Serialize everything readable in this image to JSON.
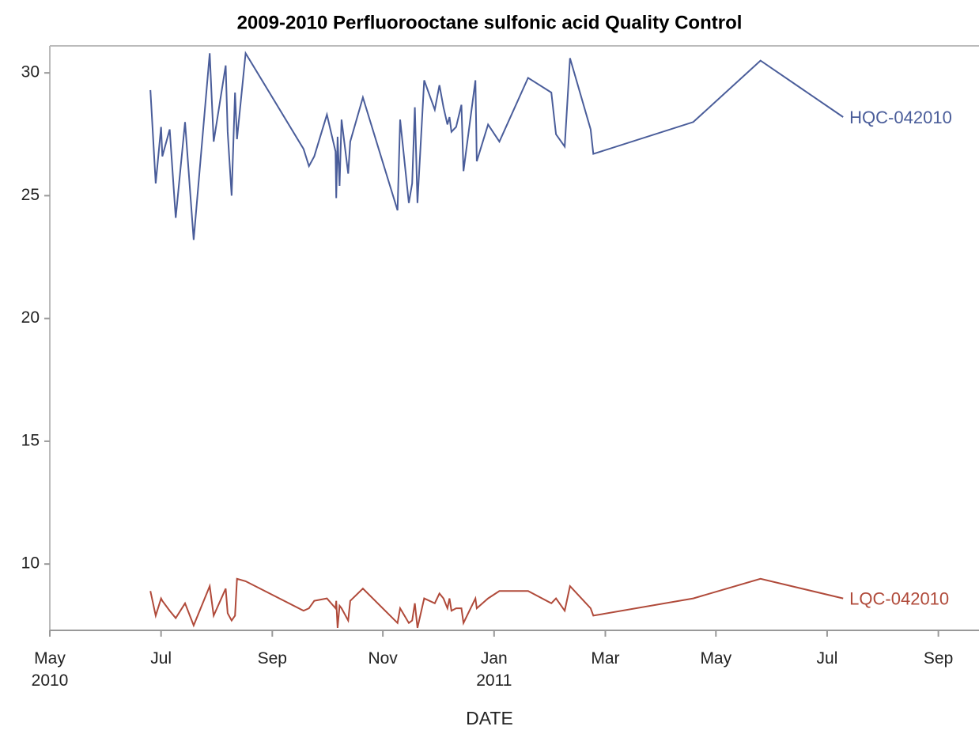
{
  "chart_data": {
    "type": "line",
    "title": "2009-2010 Perfluorooctane sulfonic acid Quality Control",
    "x_label": "DATE",
    "x": [
      2010.484,
      2010.492,
      2010.5,
      2010.502,
      2010.513,
      2010.522,
      2010.536,
      2010.549,
      2010.573,
      2010.579,
      2010.597,
      2010.6,
      2010.606,
      2010.611,
      2010.614,
      2010.627,
      2010.714,
      2010.722,
      2010.73,
      2010.749,
      2010.762,
      2010.763,
      2010.765,
      2010.768,
      2010.771,
      2010.781,
      2010.784,
      2010.803,
      2010.855,
      2010.859,
      2010.872,
      2010.877,
      2010.881,
      2010.885,
      2010.895,
      2010.911,
      2010.918,
      2010.924,
      2010.93,
      2010.933,
      2010.936,
      2010.943,
      2010.951,
      2010.954,
      2010.972,
      2010.974,
      2010.991,
      2011.008,
      2011.051,
      2011.086,
      2011.093,
      2011.106,
      2011.114,
      2011.145,
      2011.149,
      2011.299,
      2011.4,
      2011.524
    ],
    "series": [
      {
        "name": "HQC-042010",
        "color": "#4a5d9a",
        "values": [
          29.3,
          25.5,
          27.8,
          26.6,
          27.7,
          24.1,
          28.0,
          23.2,
          30.8,
          27.2,
          30.3,
          27.6,
          25.0,
          29.2,
          27.3,
          30.8,
          26.9,
          26.2,
          26.6,
          28.3,
          26.8,
          24.9,
          27.4,
          25.4,
          28.1,
          25.9,
          27.2,
          29.0,
          24.4,
          28.1,
          24.7,
          25.5,
          28.6,
          24.7,
          29.7,
          28.5,
          29.5,
          28.6,
          27.9,
          28.2,
          27.6,
          27.8,
          28.7,
          26.0,
          29.7,
          26.4,
          27.9,
          27.2,
          29.8,
          29.2,
          27.5,
          27.0,
          30.6,
          27.7,
          26.7,
          28.0,
          30.5,
          28.2
        ]
      },
      {
        "name": "LQC-042010",
        "color": "#b04a3a",
        "values": [
          8.9,
          7.9,
          8.6,
          8.5,
          8.1,
          7.8,
          8.4,
          7.5,
          9.1,
          7.9,
          9.0,
          8.0,
          7.7,
          7.9,
          9.4,
          9.3,
          8.1,
          8.2,
          8.5,
          8.6,
          8.2,
          8.5,
          7.4,
          8.3,
          8.2,
          7.7,
          8.5,
          9.0,
          7.6,
          8.2,
          7.6,
          7.7,
          8.4,
          7.4,
          8.6,
          8.4,
          8.8,
          8.6,
          8.2,
          8.6,
          8.1,
          8.2,
          8.2,
          7.6,
          8.6,
          8.2,
          8.6,
          8.9,
          8.9,
          8.4,
          8.6,
          8.1,
          9.1,
          8.2,
          7.9,
          8.6,
          9.4,
          8.6
        ]
      }
    ],
    "xlim": [
      2010.333,
      2011.728
    ],
    "xticks": [
      {
        "value": 2010.333,
        "label": "May\n2010"
      },
      {
        "value": 2010.5,
        "label": "Jul"
      },
      {
        "value": 2010.667,
        "label": "Sep"
      },
      {
        "value": 2010.833,
        "label": "Nov"
      },
      {
        "value": 2011,
        "label": "Jan\n2011"
      },
      {
        "value": 2011.167,
        "label": "Mar"
      },
      {
        "value": 2011.333,
        "label": "May"
      },
      {
        "value": 2011.5,
        "label": "Jul"
      },
      {
        "value": 2011.667,
        "label": "Sep"
      }
    ],
    "ylim": [
      7.3,
      31.1
    ],
    "yticks": [
      10,
      15,
      20,
      25,
      30
    ]
  }
}
